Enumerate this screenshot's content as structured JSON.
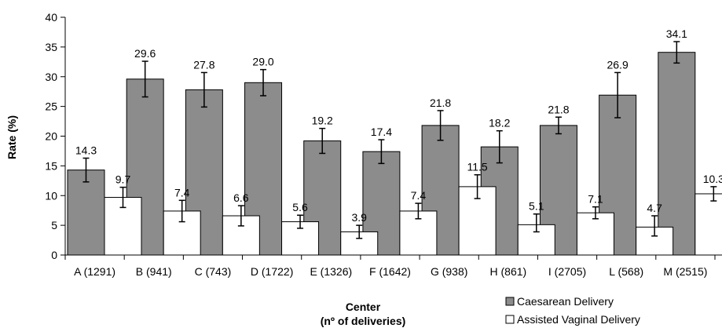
{
  "chart_data": {
    "type": "bar",
    "ylabel": "Rate (%)",
    "xlabel_line1": "Center",
    "xlabel_line2": "(nº of deliveries)",
    "ylim": [
      0,
      40
    ],
    "yticks": [
      "0",
      "5",
      "10",
      "15",
      "20",
      "25",
      "30",
      "35",
      "40"
    ],
    "ytick_values": [
      0,
      5,
      10,
      15,
      20,
      25,
      30,
      35,
      40
    ],
    "grid": false,
    "legend_position": "bottom-right",
    "categories": [
      "A (1291)",
      "B (941)",
      "C (743)",
      "D (1722)",
      "E (1326)",
      "F (1642)",
      "G (938)",
      "H (861)",
      "I (2705)",
      "L (568)",
      "M (2515)"
    ],
    "series": [
      {
        "name": "Caesarean Delivery",
        "color": "#8c8c8c",
        "values": [
          14.3,
          29.6,
          27.8,
          29.0,
          19.2,
          17.4,
          21.8,
          18.2,
          21.8,
          26.9,
          34.1
        ],
        "labels": [
          "14.3",
          "29.6",
          "27.8",
          "29.0",
          "19.2",
          "17.4",
          "21.8",
          "18.2",
          "21.8",
          "26.9",
          "34.1"
        ],
        "error_low": [
          12.3,
          26.6,
          24.9,
          26.8,
          17.1,
          15.4,
          19.3,
          15.5,
          20.4,
          23.1,
          32.3
        ],
        "error_high": [
          16.3,
          32.6,
          30.7,
          31.2,
          21.3,
          19.4,
          24.3,
          20.9,
          23.2,
          30.7,
          35.9
        ]
      },
      {
        "name": "Assisted Vaginal Delivery",
        "color": "#ffffff",
        "values": [
          9.7,
          7.4,
          6.6,
          5.6,
          3.9,
          7.4,
          11.5,
          5.1,
          7.1,
          4.7,
          10.3
        ],
        "labels": [
          "9.7",
          "7.4",
          "6.6",
          "5.6",
          "3.9",
          "7.4",
          "11.5",
          "5.1",
          "7.1",
          "4.7",
          "10.3"
        ],
        "error_low": [
          8.0,
          5.6,
          4.9,
          4.5,
          2.8,
          6.1,
          9.5,
          3.9,
          6.1,
          3.2,
          9.1
        ],
        "error_high": [
          11.4,
          9.2,
          8.3,
          6.7,
          5.0,
          8.7,
          13.5,
          6.9,
          8.1,
          6.6,
          11.5
        ]
      }
    ]
  }
}
